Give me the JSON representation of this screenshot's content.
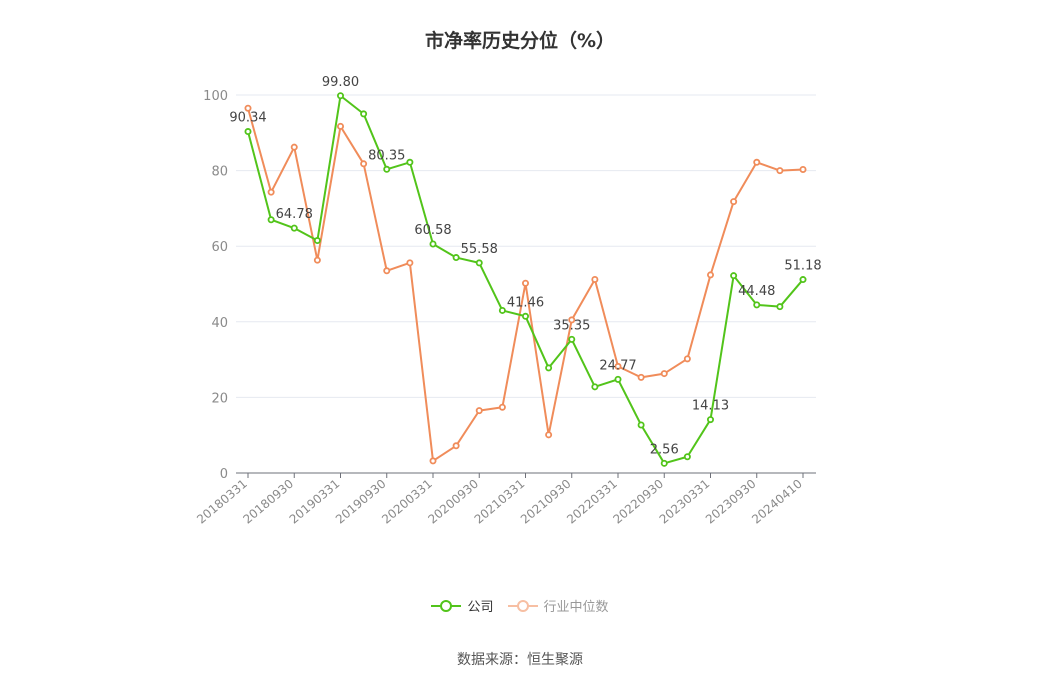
{
  "chart_data": {
    "type": "line",
    "title": "市净率历史分位（%）",
    "ylim": [
      0,
      100
    ],
    "yticks": [
      0,
      20,
      40,
      60,
      80,
      100
    ],
    "x_tick_labels": [
      "20180331",
      "20180930",
      "20190331",
      "20190930",
      "20200331",
      "20200930",
      "20210331",
      "20210930",
      "20220331",
      "20220930",
      "20230331",
      "20230930",
      "20240410"
    ],
    "x": [
      "20180331",
      "20180630",
      "20180930",
      "20181231",
      "20190331",
      "20190630",
      "20190930",
      "20191231",
      "20200331",
      "20200630",
      "20200930",
      "20201231",
      "20210331",
      "20210630",
      "20210930",
      "20211231",
      "20220331",
      "20220630",
      "20220930",
      "20221231",
      "20230331",
      "20230630",
      "20230930",
      "20231231",
      "20240410"
    ],
    "grid": true,
    "legend_position": "bottom",
    "series": [
      {
        "name": "公司",
        "color": "#52c41a",
        "values": [
          90.34,
          67,
          64.78,
          61.5,
          99.8,
          95,
          80.35,
          82.2,
          60.58,
          57,
          55.58,
          43,
          41.46,
          27.8,
          35.35,
          22.8,
          24.77,
          12.7,
          2.56,
          4.3,
          14.13,
          52.2,
          44.48,
          44,
          51.18
        ],
        "labels": {
          "0": "90.34",
          "2": "64.78",
          "4": "99.80",
          "6": "80.35",
          "8": "60.58",
          "10": "55.58",
          "12": "41.46",
          "14": "35.35",
          "16": "24.77",
          "18": "2.56",
          "20": "14.13",
          "22": "44.48",
          "24": "51.18"
        }
      },
      {
        "name": "行业中位数",
        "color": "#f08c5a",
        "values": [
          96.5,
          74.3,
          86.2,
          56.3,
          91.7,
          81.8,
          53.5,
          55.6,
          3.2,
          7.2,
          16.5,
          17.4,
          50.2,
          10.1,
          40.5,
          51.2,
          28.2,
          25.3,
          26.3,
          30.2,
          52.4,
          71.8,
          82.2,
          80,
          80.3
        ]
      }
    ]
  },
  "legend": {
    "company": "公司",
    "industry": "行业中位数"
  },
  "source": "数据来源：恒生聚源"
}
